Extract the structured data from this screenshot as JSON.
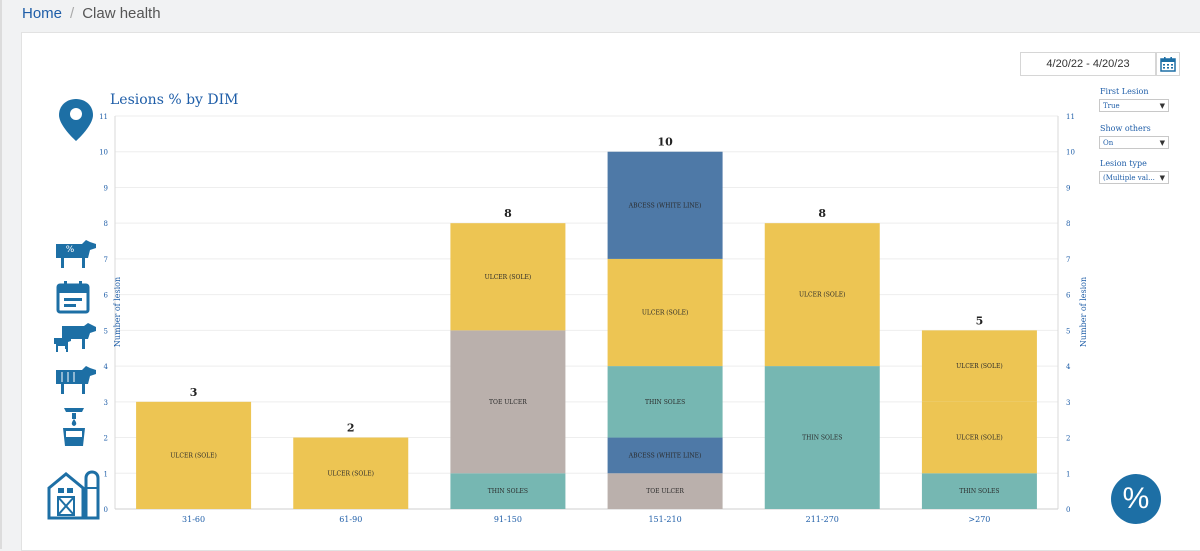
{
  "breadcrumb": {
    "home": "Home",
    "separator": "/",
    "current": "Claw health"
  },
  "date_range": "4/20/22 - 4/20/23",
  "filters": [
    {
      "label": "First Lesion",
      "value": "True"
    },
    {
      "label": "Show others",
      "value": "On"
    },
    {
      "label": "Lesion type",
      "value": "(Multiple val..."
    }
  ],
  "pct_badge": "%",
  "colors": {
    "ulcer_sole": "#edc553",
    "thin_soles": "#76b7b2",
    "toe_ulcer": "#bab0ac",
    "abcess_white_line": "#4e79a7",
    "axis_text": "#1f5ea8",
    "icon": "#1d6fa5"
  },
  "chart_data": {
    "type": "bar",
    "stacked": true,
    "title": "Lesions % by DIM",
    "ylabel": "Number of lesion",
    "y2label": "Number of lesion",
    "xlabel": "",
    "ylim": [
      0,
      11
    ],
    "yticks": [
      "0",
      "1",
      "2",
      "3",
      "4",
      "5",
      "6",
      "7",
      "8",
      "9",
      "10",
      "11"
    ],
    "categories": [
      "31-60",
      "61-90",
      "91-150",
      "151-210",
      "211-270",
      ">270"
    ],
    "totals": [
      "3",
      "2",
      "8",
      "10",
      "8",
      "5"
    ],
    "bars": [
      {
        "category": "31-60",
        "segments": [
          {
            "label": "ULCER (SOLE)",
            "value": 3,
            "color_key": "ulcer_sole"
          }
        ]
      },
      {
        "category": "61-90",
        "segments": [
          {
            "label": "ULCER (SOLE)",
            "value": 2,
            "color_key": "ulcer_sole"
          }
        ]
      },
      {
        "category": "91-150",
        "segments": [
          {
            "label": "THIN SOLES",
            "value": 1,
            "color_key": "thin_soles"
          },
          {
            "label": "TOE ULCER",
            "value": 4,
            "color_key": "toe_ulcer"
          },
          {
            "label": "ULCER (SOLE)",
            "value": 3,
            "color_key": "ulcer_sole"
          }
        ]
      },
      {
        "category": "151-210",
        "segments": [
          {
            "label": "TOE ULCER",
            "value": 1,
            "color_key": "toe_ulcer"
          },
          {
            "label": "ABCESS (WHITE LINE)",
            "value": 1,
            "color_key": "abcess_white_line"
          },
          {
            "label": "THIN SOLES",
            "value": 2,
            "color_key": "thin_soles"
          },
          {
            "label": "ULCER (SOLE)",
            "value": 3,
            "color_key": "ulcer_sole"
          },
          {
            "label": "ABCESS (WHITE LINE)",
            "value": 3,
            "color_key": "abcess_white_line"
          }
        ]
      },
      {
        "category": "211-270",
        "segments": [
          {
            "label": "THIN SOLES",
            "value": 4,
            "color_key": "thin_soles"
          },
          {
            "label": "ULCER (SOLE)",
            "value": 4,
            "color_key": "ulcer_sole"
          }
        ]
      },
      {
        "category": ">270",
        "segments": [
          {
            "label": "THIN SOLES",
            "value": 1,
            "color_key": "thin_soles"
          },
          {
            "label": "ULCER (SOLE)",
            "value": 2,
            "color_key": "ulcer_sole"
          },
          {
            "label": "ULCER (SOLE)",
            "value": 2,
            "color_key": "ulcer_sole"
          }
        ]
      }
    ]
  },
  "side_icons": [
    "location-pin-icon",
    "cow-percent-icon",
    "calendar-icon",
    "cow-calf-icon",
    "cow-icon",
    "milk-bucket-icon",
    "barn-icon"
  ]
}
